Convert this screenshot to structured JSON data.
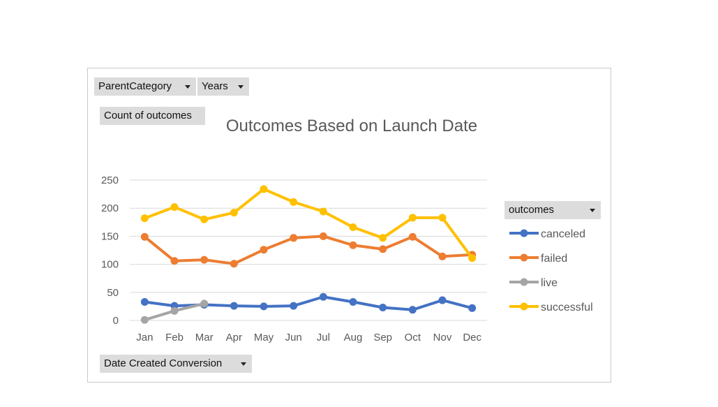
{
  "pivot": {
    "filter_parent": "ParentCategory",
    "filter_years": "Years",
    "values_field": "Count of outcomes",
    "axis_field": "Date Created Conversion",
    "legend_field": "outcomes"
  },
  "colors": {
    "canceled": "#4472C4",
    "failed": "#ED7D31",
    "live": "#A5A5A5",
    "successful": "#FFC000",
    "gridline": "#d9d9d9",
    "text": "#595959"
  },
  "chart_data": {
    "type": "line",
    "title": "Outcomes Based on Launch Date",
    "xlabel": "",
    "ylabel": "",
    "ylim": [
      0,
      250
    ],
    "yticks": [
      0,
      50,
      100,
      150,
      200,
      250
    ],
    "grid": true,
    "legend_position": "right",
    "categories": [
      "Jan",
      "Feb",
      "Mar",
      "Apr",
      "May",
      "Jun",
      "Jul",
      "Aug",
      "Sep",
      "Oct",
      "Nov",
      "Dec"
    ],
    "series": [
      {
        "name": "canceled",
        "color": "#4472C4",
        "values": [
          33,
          26,
          28,
          26,
          25,
          26,
          42,
          33,
          23,
          19,
          36,
          22
        ]
      },
      {
        "name": "failed",
        "color": "#ED7D31",
        "values": [
          149,
          106,
          108,
          101,
          126,
          147,
          150,
          134,
          127,
          149,
          114,
          117
        ]
      },
      {
        "name": "live",
        "color": "#A5A5A5",
        "values": [
          1,
          17,
          30,
          null,
          null,
          null,
          null,
          null,
          null,
          null,
          null,
          null
        ]
      },
      {
        "name": "successful",
        "color": "#FFC000",
        "values": [
          182,
          202,
          180,
          192,
          234,
          211,
          194,
          166,
          147,
          183,
          183,
          111
        ]
      }
    ]
  }
}
